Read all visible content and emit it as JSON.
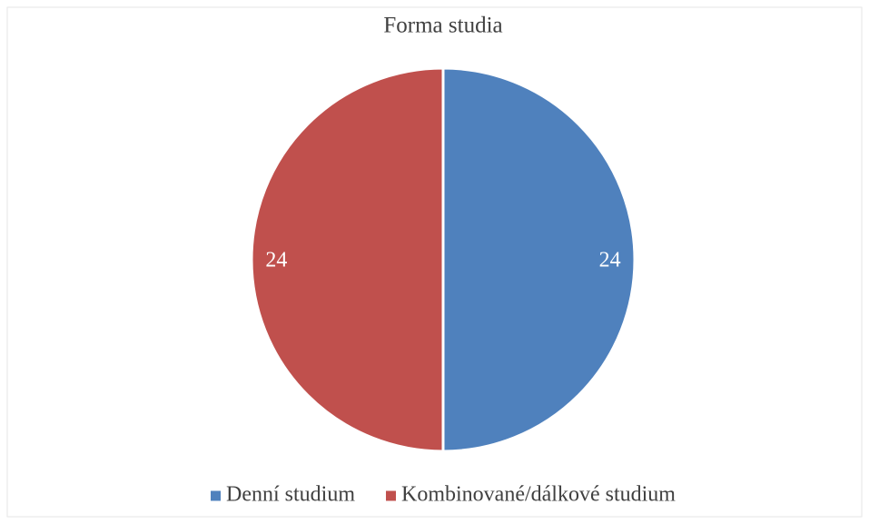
{
  "chart_data": {
    "type": "pie",
    "title": "Forma studia",
    "categories": [
      "Denní studium",
      "Kombinované/dálkové studium"
    ],
    "values": [
      24,
      24
    ],
    "colors": [
      "#4f81bd",
      "#c0504d"
    ],
    "legend": "bottom"
  }
}
